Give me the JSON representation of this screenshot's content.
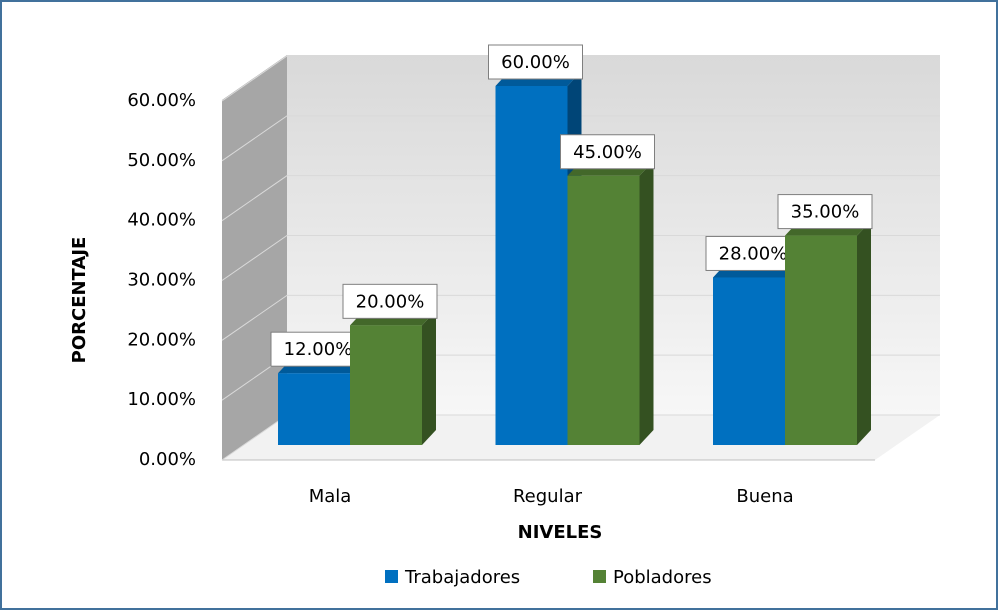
{
  "chart_data": {
    "type": "bar3d",
    "x_label": "NIVELES",
    "y_label": "PORCENTAJE",
    "categories": [
      "Mala",
      "Regular",
      "Buena"
    ],
    "series": [
      {
        "name": "Trabajadores",
        "color": "#0070c0",
        "values": [
          12,
          60,
          28
        ],
        "value_labels": [
          "12.00%",
          "60.00%",
          "28.00%"
        ]
      },
      {
        "name": "Pobladores",
        "color": "#548235",
        "values": [
          20,
          45,
          35
        ],
        "value_labels": [
          "20.00%",
          "45.00%",
          "35.00%"
        ]
      }
    ],
    "ylim": [
      0,
      60
    ],
    "yticks": [
      {
        "value": 0,
        "label": "0.00%"
      },
      {
        "value": 10,
        "label": "10.00%"
      },
      {
        "value": 20,
        "label": "20.00%"
      },
      {
        "value": 30,
        "label": "30.00%"
      },
      {
        "value": 40,
        "label": "40.00%"
      },
      {
        "value": 50,
        "label": "50.00%"
      },
      {
        "value": 60,
        "label": "60.00%"
      }
    ],
    "grid": true,
    "legend": "bottom"
  }
}
